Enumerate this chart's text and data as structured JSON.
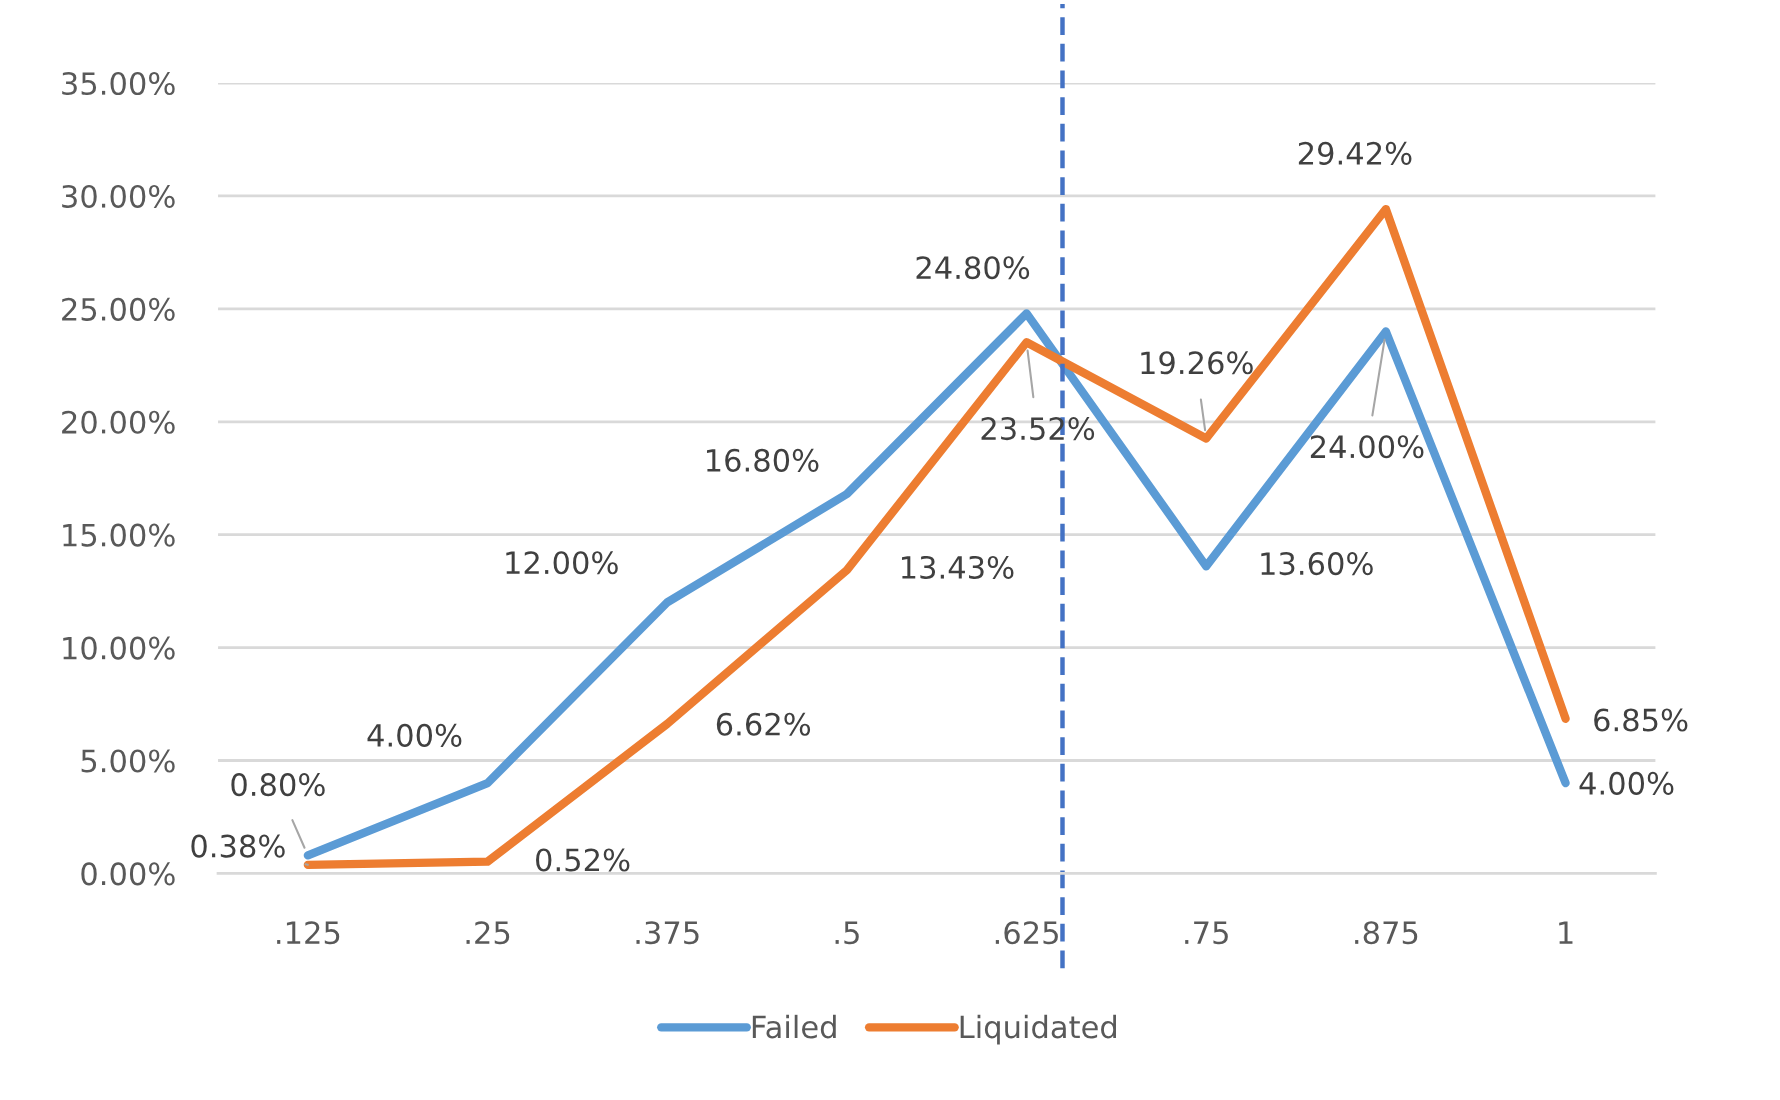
{
  "chart_data": {
    "type": "line",
    "x": [
      0.125,
      0.25,
      0.375,
      0.5,
      0.625,
      0.75,
      0.875,
      1
    ],
    "xlim": [
      0.0625,
      1.0625
    ],
    "xticks": [
      {
        "value": 0.125,
        "label": ".125"
      },
      {
        "value": 0.25,
        "label": ".25"
      },
      {
        "value": 0.375,
        "label": ".375"
      },
      {
        "value": 0.5,
        "label": ".5"
      },
      {
        "value": 0.625,
        "label": ".625"
      },
      {
        "value": 0.75,
        "label": ".75"
      },
      {
        "value": 0.875,
        "label": ".875"
      },
      1
    ],
    "ylim": [
      0,
      35
    ],
    "yticks": [
      {
        "value": 0,
        "label": "0.00%"
      },
      {
        "value": 5,
        "label": "5.00%"
      },
      {
        "value": 10,
        "label": "10.00%"
      },
      {
        "value": 15,
        "label": "15.00%"
      },
      {
        "value": 20,
        "label": "20.00%"
      },
      {
        "value": 25,
        "label": "25.00%"
      },
      {
        "value": 30,
        "label": "30.00%"
      },
      {
        "value": 35,
        "label": "35.00%"
      }
    ],
    "series": [
      {
        "name": "Failed",
        "color": "#5b9bd5",
        "values": [
          0.8,
          4.0,
          12.0,
          16.8,
          24.8,
          13.6,
          24.0,
          4.0
        ],
        "value_labels": [
          "0.80%",
          "4.00%",
          "12.00%",
          "16.80%",
          "24.80%",
          "13.60%",
          "24.00%",
          "4.00%"
        ]
      },
      {
        "name": "Liquidated",
        "color": "#ed7d31",
        "values": [
          0.38,
          0.52,
          6.62,
          13.43,
          23.52,
          19.26,
          29.42,
          6.85
        ],
        "value_labels": [
          "0.38%",
          "0.52%",
          "6.62%",
          "13.43%",
          "23.52%",
          "19.26%",
          "29.42%",
          "6.85%"
        ]
      }
    ],
    "ref_lines": [
      {
        "axis": "x",
        "value": 0.65,
        "color": "#4472c4",
        "line_style": "dashed"
      }
    ],
    "grid": "y",
    "legend": "bottom"
  }
}
